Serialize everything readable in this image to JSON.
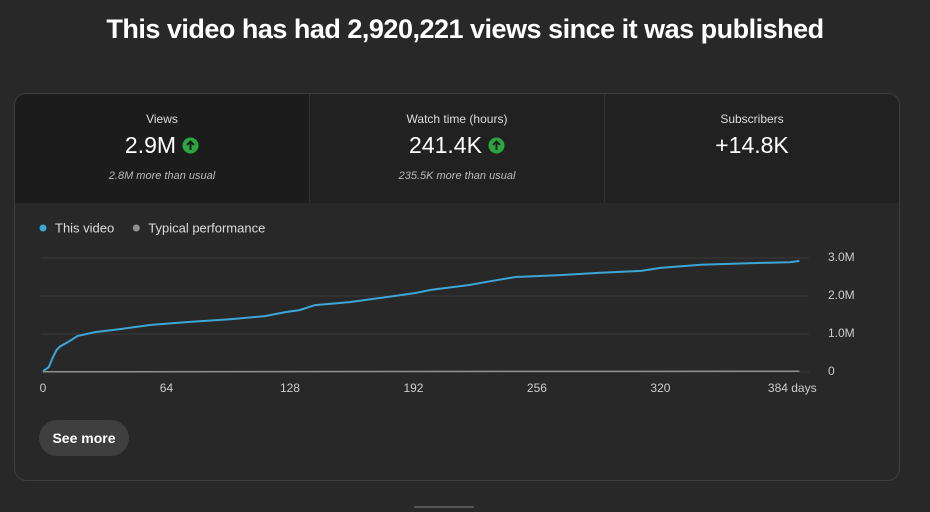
{
  "header": {
    "title": "This video has had 2,920,221 views since it was published"
  },
  "metrics": [
    {
      "label": "Views",
      "value": "2.9M",
      "note": "2.8M more than usual"
    },
    {
      "label": "Watch time (hours)",
      "value": "241.4K",
      "note": "235.5K more than usual"
    },
    {
      "label": "Subscribers",
      "value": "+14.8K"
    }
  ],
  "chart_data": {
    "type": "line",
    "series": [
      {
        "name": "This video",
        "color": "#3ea6d6",
        "x": [
          0,
          3,
          5,
          7,
          9,
          13,
          18,
          27,
          40,
          56,
          77,
          97,
          115,
          126,
          133,
          141,
          159,
          175,
          193,
          201,
          221,
          232,
          245,
          268,
          289,
          310,
          320,
          341,
          351,
          372,
          387,
          392
        ],
        "values": [
          0.02,
          0.13,
          0.37,
          0.58,
          0.68,
          0.79,
          0.95,
          1.05,
          1.13,
          1.24,
          1.32,
          1.39,
          1.47,
          1.58,
          1.63,
          1.76,
          1.84,
          1.95,
          2.08,
          2.16,
          2.29,
          2.39,
          2.5,
          2.55,
          2.61,
          2.66,
          2.74,
          2.82,
          2.84,
          2.87,
          2.89,
          2.92
        ]
      },
      {
        "name": "Typical performance",
        "color": "#909090",
        "x": [
          0,
          392
        ],
        "values": [
          0.005,
          0.02
        ]
      }
    ],
    "xlim": [
      0,
      397
    ],
    "ylim": [
      0,
      3
    ],
    "xticks": [
      0,
      64,
      128,
      192,
      256,
      320,
      {
        "value": 384,
        "label": "384 days"
      }
    ],
    "yticks": [
      0,
      {
        "value": 1,
        "label": "1.0M"
      },
      {
        "value": 2,
        "label": "2.0M"
      },
      {
        "value": 3,
        "label": "3.0M"
      }
    ],
    "grid": true
  },
  "button": {
    "label": "See more"
  }
}
